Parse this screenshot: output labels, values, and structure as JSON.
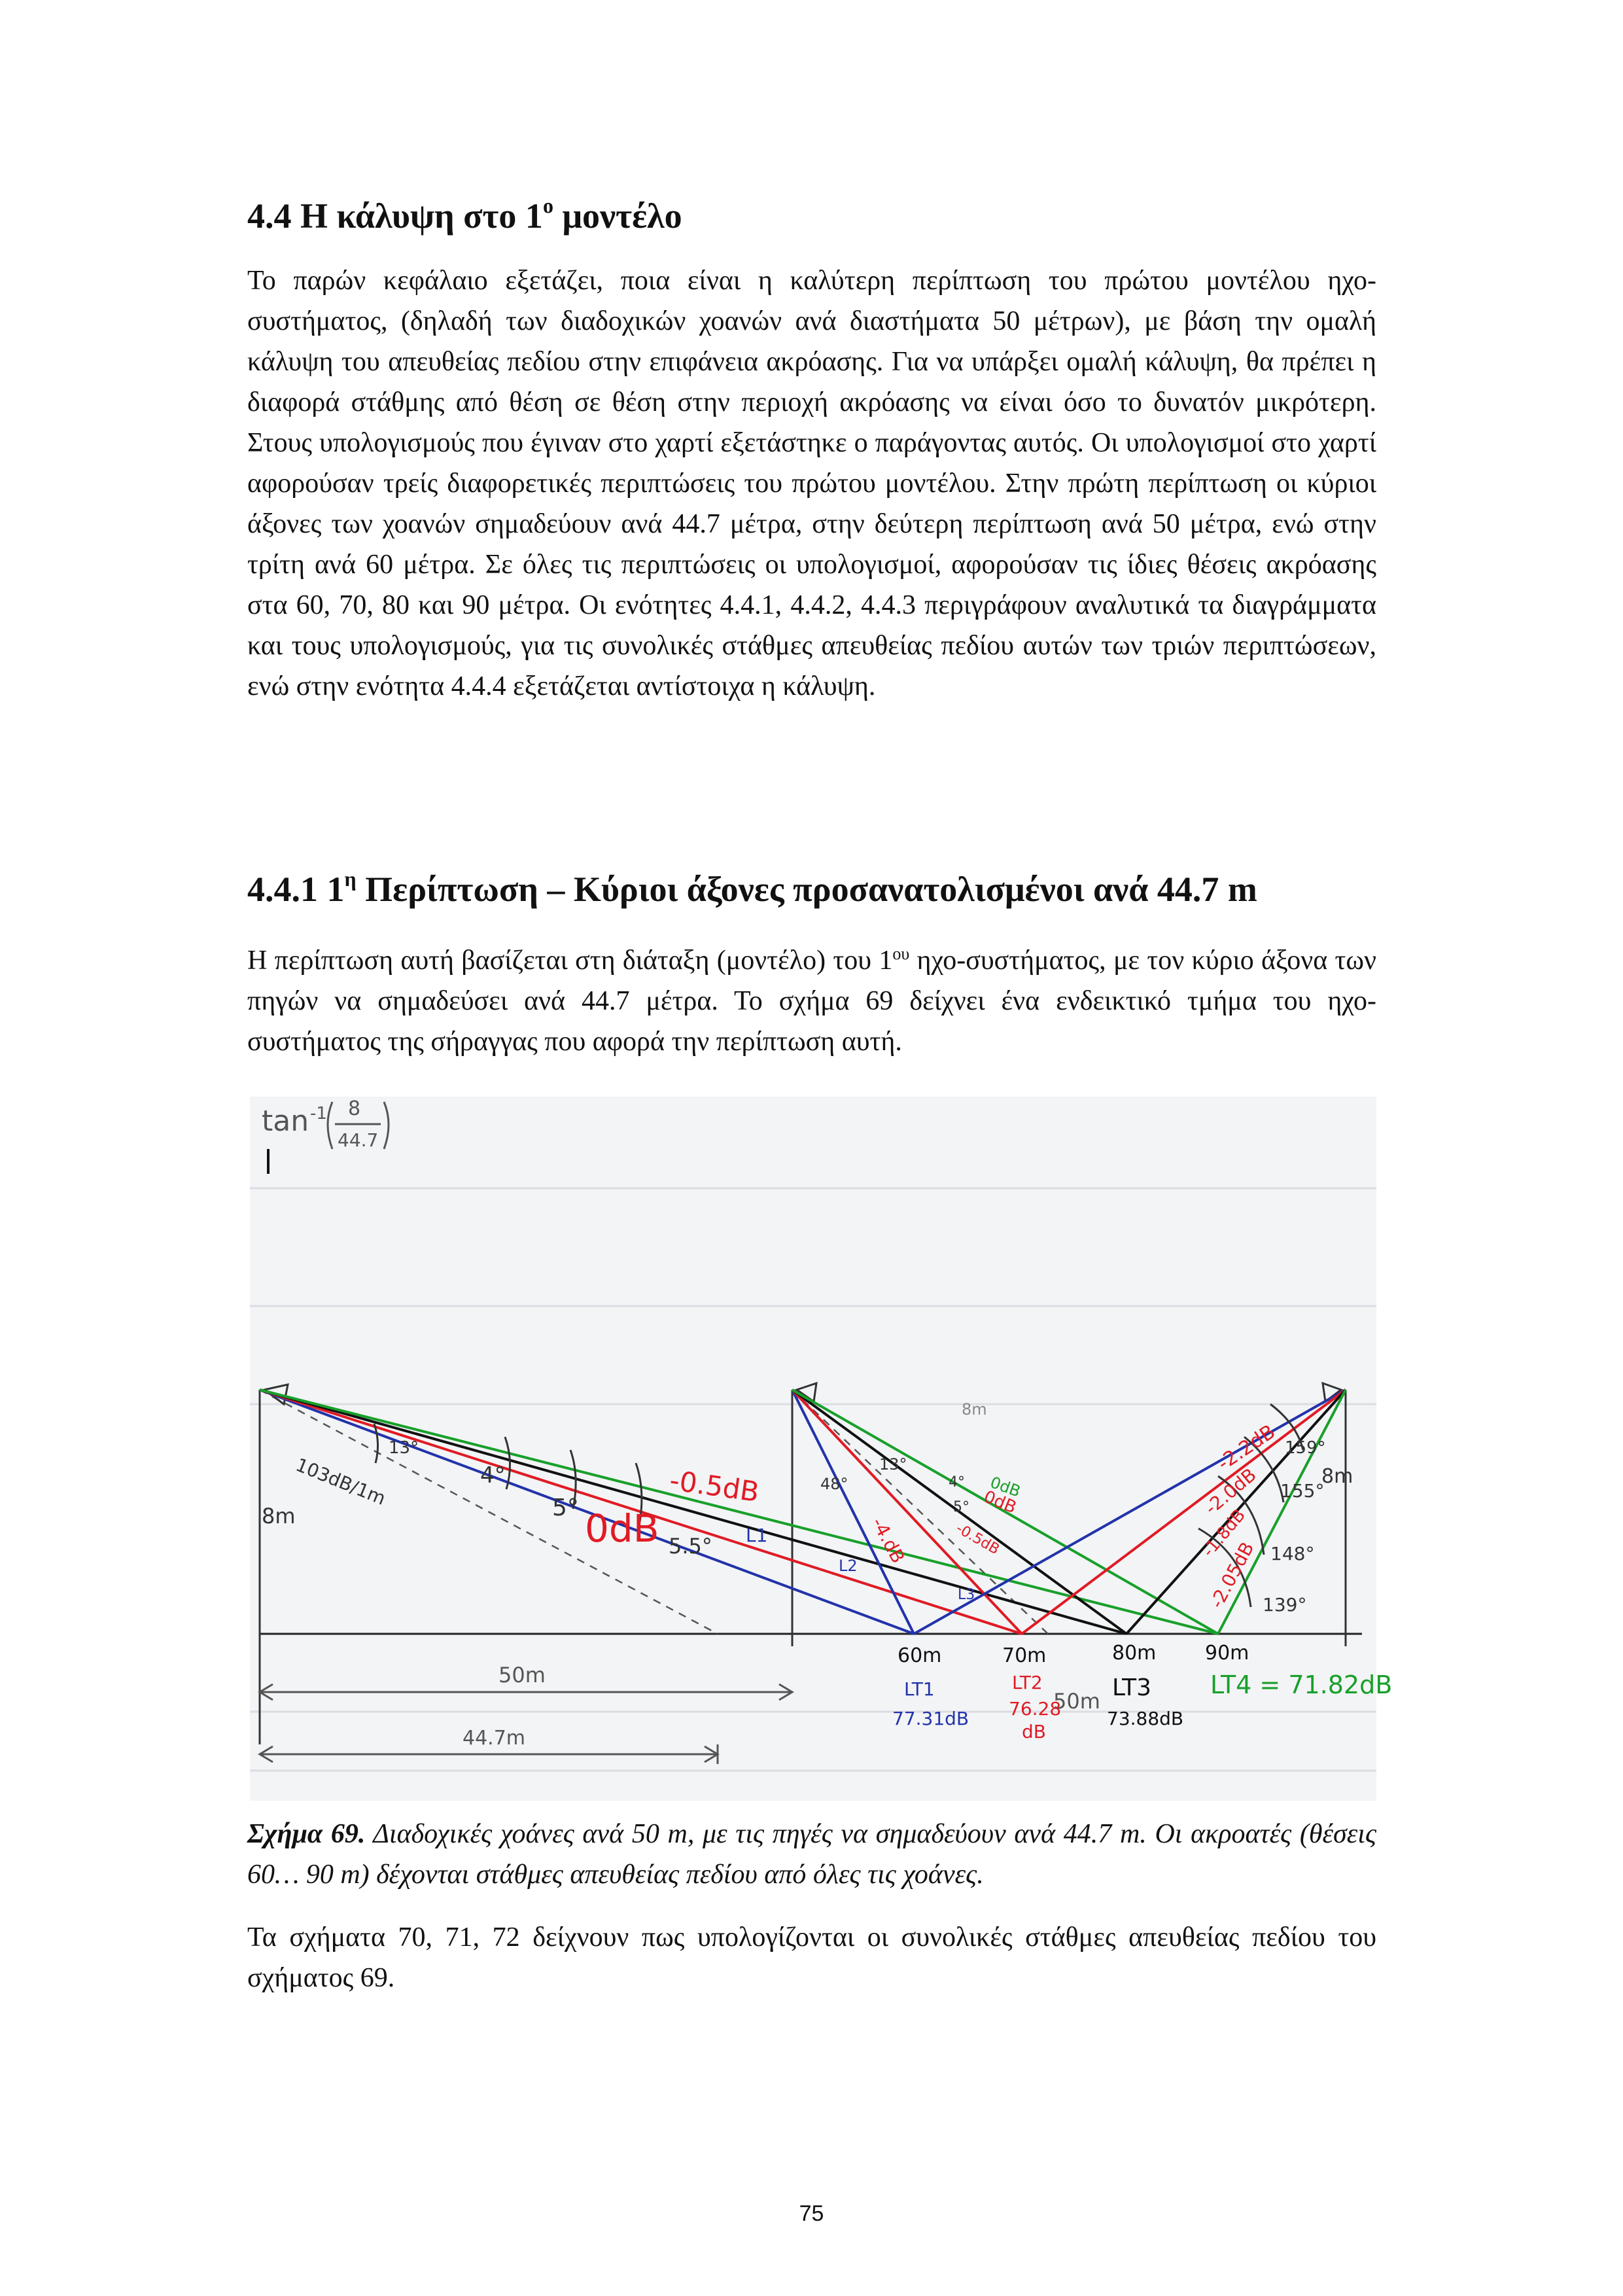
{
  "section_4_4": {
    "number": "4.4",
    "title_before_sup": "Η κάλυψη στο 1",
    "title_sup": "ο",
    "title_after_sup": " μοντέλο"
  },
  "paragraph_1": "Το παρών κεφάλαιο εξετάζει, ποια είναι η καλύτερη περίπτωση του πρώτου μοντέλου ηχο-συστήματος, (δηλαδή των διαδοχικών χοανών ανά διαστήματα 50 μέτρων), με βάση την ομαλή κάλυψη του απευθείας πεδίου στην επιφάνεια ακρόασης. Για να υπάρξει ομαλή κάλυψη, θα πρέπει η διαφορά στάθμης από θέση σε θέση στην περιοχή ακρόασης να είναι όσο το δυνατόν μικρότερη. Στους υπολογισμούς που έγιναν στο χαρτί εξετάστηκε ο παράγοντας αυτός. Οι υπολογισμοί στο χαρτί αφορούσαν τρείς διαφορετικές περιπτώσεις του πρώτου μοντέλου. Στην πρώτη περίπτωση οι κύριοι άξονες των χοανών σημαδεύουν ανά 44.7 μέτρα, στην δεύτερη περίπτωση ανά 50 μέτρα, ενώ στην τρίτη ανά 60 μέτρα. Σε όλες τις περιπτώσεις οι υπολογισμοί, αφορούσαν τις ίδιες θέσεις ακρόασης στα 60, 70, 80 και 90 μέτρα. Οι ενότητες 4.4.1, 4.4.2, 4.4.3 περιγράφουν αναλυτικά τα διαγράμματα και τους υπολογισμούς, για τις συνολικές στάθμες απευθείας πεδίου αυτών των τριών περιπτώσεων, ενώ στην ενότητα 4.4.4 εξετάζεται αντίστοιχα η κάλυψη.",
  "section_4_4_1": {
    "number": "4.4.1",
    "title_before_sup": "1",
    "title_sup": "η",
    "title_after_sup": " Περίπτωση – Κύριοι άξονες προσανατολισμένοι ανά 44.7 m"
  },
  "paragraph_2": {
    "before_sup": "Η περίπτωση αυτή βασίζεται στη διάταξη (μοντέλο) του 1",
    "sup": "ου",
    "after_sup": " ηχο-συστήματος, με τον κύριο άξονα των πηγών να σημαδεύσει ανά 44.7 μέτρα. Το σχήμα 69 δείχνει ένα ενδεικτικό τμήμα του ηχο-συστήματος της σήραγγας που αφορά την περίπτωση αυτή."
  },
  "figure": {
    "formula_main": "tan",
    "formula_exp": "-1",
    "formula_num": "8",
    "formula_den": "44.7",
    "source_level": "103dB/1m",
    "height_left": "8m",
    "height_right": "8m",
    "height_mid": "8m",
    "angle_13": "13°",
    "angle_4": "4°",
    "angle_5": "5°",
    "angle_5_5": "5.5°",
    "angle_mid_48": "48°",
    "angle_mid_13": "13°",
    "angle_mid_4": "4°",
    "angle_mid_5": "5°",
    "angle_r_159": "159°",
    "angle_r_155": "155°",
    "angle_r_148": "148°",
    "angle_r_139": "139°",
    "db_m05": "-0.5dB",
    "db_0": "0dB",
    "db_mid_0": "0dB",
    "db_mid_0b": "0dB",
    "db_mid_m05": "-0.5dB",
    "db_mid_m4": "-4.dB",
    "db_r_m22": "-2.2dB",
    "db_r_m20": "-2.0dB",
    "db_r_m18": "-1.8dB",
    "db_r_m205": "-2.05dB",
    "ray_L1": "L1",
    "ray_L2": "L2",
    "ray_L3": "L3",
    "dist_50m": "50m",
    "dist_44_7m": "44.7m",
    "dist_50m_b": "50m",
    "pos_60": "60m",
    "pos_70": "70m",
    "pos_80": "80m",
    "pos_90": "90m",
    "lt1_name": "LT1",
    "lt1_val": "77.31dB",
    "lt2_name": "LT2",
    "lt2_val": "76.28",
    "lt2_unit": "dB",
    "lt3_name": "LT3",
    "lt3_val": "73.88dB",
    "lt4_label": "LT4 = 71.82dB",
    "colors": {
      "blue": "#2233aa",
      "red": "#e01b24",
      "green": "#18a02a",
      "black": "#111111",
      "pencil": "#666666"
    }
  },
  "caption": {
    "label": "Σχήμα 69.",
    "text": " Διαδοχικές χοάνες ανά 50 m, με τις πηγές να σημαδεύουν ανά 44.7 m. Οι ακροατές (θέσεις 60… 90 m) δέχονται στάθμες απευθείας πεδίου από όλες τις χοάνες."
  },
  "paragraph_3": "Τα σχήματα 70, 71, 72 δείχνουν πως υπολογίζονται οι συνολικές στάθμες απευθείας πεδίου του σχήματος 69.",
  "page_number": "75"
}
